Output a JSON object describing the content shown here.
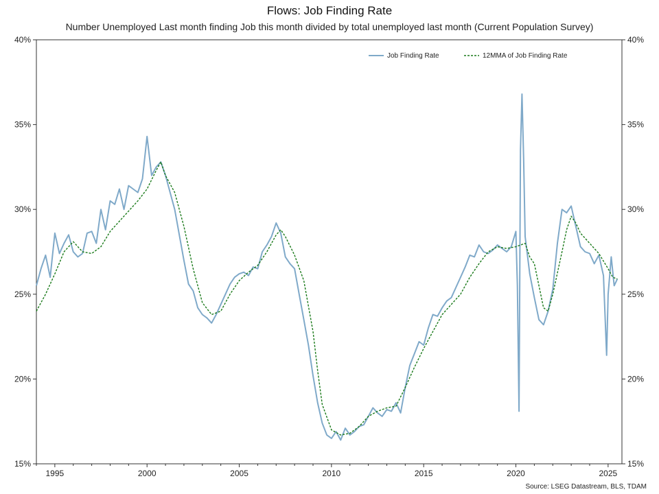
{
  "chart_data": {
    "type": "line",
    "title": "Flows: Job Finding Rate",
    "subtitle": "Number Unemployed Last month finding Job this month divided by total unemployed last month (Current Population Survey)",
    "source": "Source: LSEG Datastream, BLS, TDAM",
    "x_range": [
      1994.0,
      2025.75
    ],
    "x_ticks": [
      1995,
      2000,
      2005,
      2010,
      2015,
      2020,
      2025
    ],
    "x_tick_labels": [
      "1995",
      "2000",
      "2005",
      "2010",
      "2015",
      "2020",
      "2025"
    ],
    "y_range": [
      15,
      40
    ],
    "y_ticks": [
      15,
      20,
      25,
      30,
      35,
      40
    ],
    "y_tick_labels": [
      "15%",
      "20%",
      "25%",
      "30%",
      "35%",
      "40%"
    ],
    "legend_position": "top-right",
    "grid": false,
    "colors": {
      "series1": "#7fa9c9",
      "series2": "#1a7a1a"
    },
    "series": [
      {
        "name": "Job Finding Rate",
        "style": "solid",
        "points": [
          [
            1994.0,
            25.5
          ],
          [
            1994.25,
            26.5
          ],
          [
            1994.5,
            27.3
          ],
          [
            1994.75,
            26.0
          ],
          [
            1995.0,
            28.6
          ],
          [
            1995.25,
            27.4
          ],
          [
            1995.5,
            28.0
          ],
          [
            1995.75,
            28.5
          ],
          [
            1996.0,
            27.5
          ],
          [
            1996.25,
            27.2
          ],
          [
            1996.5,
            27.4
          ],
          [
            1996.75,
            28.6
          ],
          [
            1997.0,
            28.7
          ],
          [
            1997.25,
            28.0
          ],
          [
            1997.5,
            30.0
          ],
          [
            1997.75,
            28.8
          ],
          [
            1998.0,
            30.5
          ],
          [
            1998.25,
            30.3
          ],
          [
            1998.5,
            31.2
          ],
          [
            1998.75,
            30.0
          ],
          [
            1999.0,
            31.4
          ],
          [
            1999.25,
            31.2
          ],
          [
            1999.5,
            31.0
          ],
          [
            1999.75,
            31.8
          ],
          [
            2000.0,
            34.3
          ],
          [
            2000.25,
            32.0
          ],
          [
            2000.5,
            32.5
          ],
          [
            2000.75,
            32.8
          ],
          [
            2001.0,
            32.0
          ],
          [
            2001.25,
            31.0
          ],
          [
            2001.5,
            30.0
          ],
          [
            2001.75,
            28.5
          ],
          [
            2002.0,
            27.0
          ],
          [
            2002.25,
            25.6
          ],
          [
            2002.5,
            25.2
          ],
          [
            2002.75,
            24.2
          ],
          [
            2003.0,
            23.8
          ],
          [
            2003.25,
            23.6
          ],
          [
            2003.5,
            23.3
          ],
          [
            2003.75,
            23.8
          ],
          [
            2004.0,
            24.4
          ],
          [
            2004.25,
            25.0
          ],
          [
            2004.5,
            25.6
          ],
          [
            2004.75,
            26.0
          ],
          [
            2005.0,
            26.2
          ],
          [
            2005.25,
            26.3
          ],
          [
            2005.5,
            26.1
          ],
          [
            2005.75,
            26.6
          ],
          [
            2006.0,
            26.5
          ],
          [
            2006.25,
            27.5
          ],
          [
            2006.5,
            27.9
          ],
          [
            2006.75,
            28.4
          ],
          [
            2007.0,
            29.2
          ],
          [
            2007.25,
            28.6
          ],
          [
            2007.5,
            27.2
          ],
          [
            2007.75,
            26.8
          ],
          [
            2008.0,
            26.5
          ],
          [
            2008.25,
            25.0
          ],
          [
            2008.5,
            23.5
          ],
          [
            2008.75,
            22.0
          ],
          [
            2009.0,
            20.2
          ],
          [
            2009.25,
            18.6
          ],
          [
            2009.5,
            17.4
          ],
          [
            2009.75,
            16.7
          ],
          [
            2010.0,
            16.5
          ],
          [
            2010.25,
            16.9
          ],
          [
            2010.5,
            16.4
          ],
          [
            2010.75,
            17.1
          ],
          [
            2011.0,
            16.7
          ],
          [
            2011.25,
            16.9
          ],
          [
            2011.5,
            17.2
          ],
          [
            2011.75,
            17.3
          ],
          [
            2012.0,
            17.8
          ],
          [
            2012.25,
            18.3
          ],
          [
            2012.5,
            18.0
          ],
          [
            2012.75,
            17.8
          ],
          [
            2013.0,
            18.2
          ],
          [
            2013.25,
            18.1
          ],
          [
            2013.5,
            18.6
          ],
          [
            2013.75,
            18.0
          ],
          [
            2014.0,
            19.5
          ],
          [
            2014.25,
            20.8
          ],
          [
            2014.5,
            21.5
          ],
          [
            2014.75,
            22.2
          ],
          [
            2015.0,
            22.0
          ],
          [
            2015.25,
            23.0
          ],
          [
            2015.5,
            23.8
          ],
          [
            2015.75,
            23.7
          ],
          [
            2016.0,
            24.2
          ],
          [
            2016.25,
            24.6
          ],
          [
            2016.5,
            24.8
          ],
          [
            2016.75,
            25.4
          ],
          [
            2017.0,
            26.0
          ],
          [
            2017.25,
            26.6
          ],
          [
            2017.5,
            27.3
          ],
          [
            2017.75,
            27.2
          ],
          [
            2018.0,
            27.9
          ],
          [
            2018.25,
            27.5
          ],
          [
            2018.5,
            27.4
          ],
          [
            2018.75,
            27.6
          ],
          [
            2019.0,
            27.9
          ],
          [
            2019.25,
            27.7
          ],
          [
            2019.5,
            27.5
          ],
          [
            2019.75,
            27.8
          ],
          [
            2020.0,
            28.7
          ],
          [
            2020.08,
            25.5
          ],
          [
            2020.17,
            18.1
          ],
          [
            2020.25,
            33.5
          ],
          [
            2020.33,
            36.8
          ],
          [
            2020.42,
            33.0
          ],
          [
            2020.5,
            28.4
          ],
          [
            2020.75,
            26.2
          ],
          [
            2021.0,
            24.8
          ],
          [
            2021.25,
            23.5
          ],
          [
            2021.5,
            23.2
          ],
          [
            2021.75,
            24.0
          ],
          [
            2022.0,
            25.3
          ],
          [
            2022.25,
            28.0
          ],
          [
            2022.5,
            30.0
          ],
          [
            2022.75,
            29.8
          ],
          [
            2023.0,
            30.2
          ],
          [
            2023.25,
            29.0
          ],
          [
            2023.5,
            27.8
          ],
          [
            2023.75,
            27.5
          ],
          [
            2024.0,
            27.4
          ],
          [
            2024.25,
            26.8
          ],
          [
            2024.5,
            27.3
          ],
          [
            2024.75,
            26.1
          ],
          [
            2024.92,
            21.4
          ],
          [
            2025.0,
            25.0
          ],
          [
            2025.17,
            27.2
          ],
          [
            2025.33,
            25.5
          ],
          [
            2025.5,
            25.9
          ]
        ]
      },
      {
        "name": "12MMA of Job Finding Rate",
        "style": "dashed",
        "points": [
          [
            1994.0,
            24.0
          ],
          [
            1994.5,
            25.0
          ],
          [
            1995.0,
            26.2
          ],
          [
            1995.5,
            27.5
          ],
          [
            1996.0,
            28.1
          ],
          [
            1996.5,
            27.5
          ],
          [
            1997.0,
            27.4
          ],
          [
            1997.5,
            27.8
          ],
          [
            1998.0,
            28.7
          ],
          [
            1998.5,
            29.3
          ],
          [
            1999.0,
            29.9
          ],
          [
            1999.5,
            30.5
          ],
          [
            2000.0,
            31.2
          ],
          [
            2000.5,
            32.3
          ],
          [
            2000.75,
            32.8
          ],
          [
            2001.0,
            32.0
          ],
          [
            2001.5,
            31.0
          ],
          [
            2002.0,
            29.0
          ],
          [
            2002.5,
            26.5
          ],
          [
            2003.0,
            24.5
          ],
          [
            2003.5,
            23.8
          ],
          [
            2004.0,
            24.0
          ],
          [
            2004.5,
            25.0
          ],
          [
            2005.0,
            25.8
          ],
          [
            2005.5,
            26.3
          ],
          [
            2006.0,
            26.7
          ],
          [
            2006.5,
            27.5
          ],
          [
            2007.0,
            28.5
          ],
          [
            2007.25,
            28.8
          ],
          [
            2007.5,
            28.4
          ],
          [
            2008.0,
            27.3
          ],
          [
            2008.5,
            25.8
          ],
          [
            2009.0,
            22.8
          ],
          [
            2009.25,
            20.5
          ],
          [
            2009.5,
            18.5
          ],
          [
            2010.0,
            17.0
          ],
          [
            2010.5,
            16.7
          ],
          [
            2011.0,
            16.8
          ],
          [
            2011.5,
            17.2
          ],
          [
            2012.0,
            17.8
          ],
          [
            2012.5,
            18.1
          ],
          [
            2013.0,
            18.3
          ],
          [
            2013.5,
            18.4
          ],
          [
            2014.0,
            19.5
          ],
          [
            2014.5,
            20.7
          ],
          [
            2015.0,
            21.8
          ],
          [
            2015.5,
            22.8
          ],
          [
            2016.0,
            23.8
          ],
          [
            2016.5,
            24.4
          ],
          [
            2017.0,
            25.0
          ],
          [
            2017.5,
            26.0
          ],
          [
            2018.0,
            26.8
          ],
          [
            2018.5,
            27.5
          ],
          [
            2019.0,
            27.8
          ],
          [
            2019.5,
            27.7
          ],
          [
            2020.0,
            27.8
          ],
          [
            2020.5,
            28.0
          ],
          [
            2020.75,
            27.2
          ],
          [
            2021.0,
            26.8
          ],
          [
            2021.5,
            24.2
          ],
          [
            2021.75,
            24.0
          ],
          [
            2022.0,
            25.0
          ],
          [
            2022.5,
            27.5
          ],
          [
            2022.75,
            28.8
          ],
          [
            2023.0,
            29.6
          ],
          [
            2023.25,
            29.2
          ],
          [
            2023.5,
            28.6
          ],
          [
            2024.0,
            28.0
          ],
          [
            2024.5,
            27.4
          ],
          [
            2025.0,
            26.5
          ],
          [
            2025.25,
            26.0
          ],
          [
            2025.5,
            25.9
          ]
        ]
      }
    ]
  }
}
